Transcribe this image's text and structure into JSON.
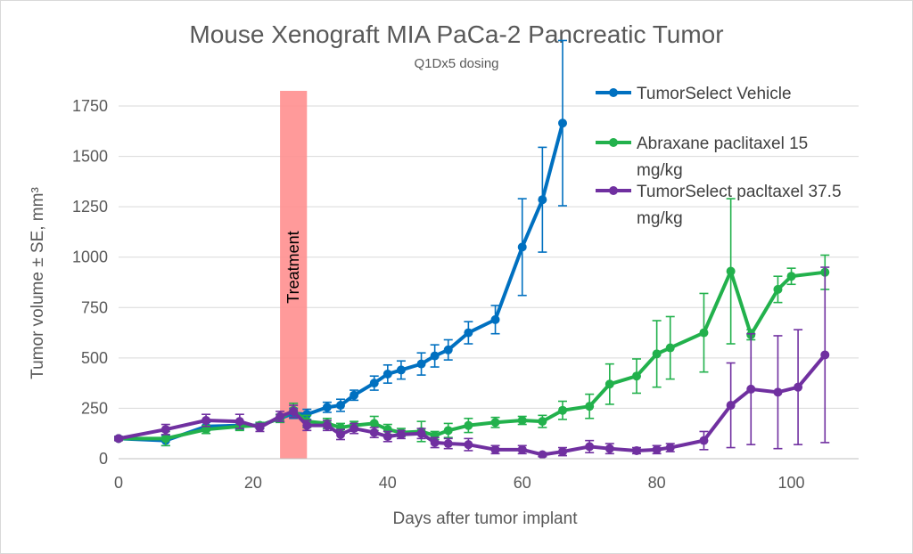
{
  "chart_data": {
    "type": "line",
    "title": "Mouse Xenograft MIA PaCa-2 Pancreatic Tumor",
    "subtitle": "Q1Dx5 dosing",
    "xlabel": "Days after tumor implant",
    "ylabel": "Tumor volume ± SE, mm³",
    "xlim": [
      0,
      110
    ],
    "ylim": [
      0,
      1750
    ],
    "xticks": [
      0,
      20,
      40,
      60,
      80,
      100
    ],
    "yticks": [
      0,
      250,
      500,
      750,
      1000,
      1250,
      1500,
      1750
    ],
    "grid": "horizontal",
    "legend_position": "top-right",
    "annotation": {
      "label": "Treatment",
      "x_start": 24,
      "x_end": 28,
      "color": "#ff8f8f"
    },
    "series": [
      {
        "name": "TumorSelect Vehicle",
        "legend_lines": [
          "TumorSelect Vehicle"
        ],
        "color": "#0070c0",
        "x": [
          0,
          7,
          13,
          18,
          21,
          24,
          26,
          28,
          31,
          33,
          35,
          38,
          40,
          42,
          45,
          47,
          49,
          52,
          56,
          60,
          63,
          66
        ],
        "y": [
          100,
          90,
          160,
          165,
          165,
          200,
          225,
          220,
          255,
          265,
          315,
          375,
          420,
          440,
          470,
          510,
          540,
          625,
          690,
          1050,
          1285,
          1665
        ],
        "err": [
          10,
          25,
          20,
          20,
          15,
          20,
          25,
          25,
          25,
          30,
          25,
          35,
          45,
          45,
          55,
          55,
          50,
          55,
          70,
          240,
          260,
          410
        ]
      },
      {
        "name": "Abraxane paclitaxel 15 mg/kg",
        "legend_lines": [
          "Abraxane paclitaxel 15",
          "mg/kg"
        ],
        "color": "#22b14c",
        "x": [
          0,
          7,
          13,
          18,
          21,
          24,
          26,
          28,
          31,
          33,
          35,
          38,
          40,
          42,
          45,
          47,
          49,
          52,
          56,
          60,
          63,
          66,
          70,
          73,
          77,
          80,
          82,
          87,
          91,
          94,
          98,
          100,
          105
        ],
        "y": [
          100,
          100,
          145,
          160,
          165,
          200,
          240,
          185,
          175,
          155,
          165,
          175,
          145,
          130,
          135,
          115,
          140,
          165,
          180,
          190,
          185,
          240,
          260,
          370,
          410,
          520,
          550,
          625,
          930,
          615,
          840,
          905,
          925
        ],
        "err": [
          10,
          35,
          20,
          20,
          15,
          20,
          35,
          30,
          25,
          20,
          20,
          35,
          25,
          20,
          50,
          20,
          35,
          35,
          25,
          20,
          30,
          45,
          60,
          100,
          85,
          165,
          155,
          195,
          360,
          25,
          65,
          40,
          85
        ]
      },
      {
        "name": "TumorSelect pacltaxel 37.5 mg/kg",
        "legend_lines": [
          "TumorSelect pacltaxel 37.5",
          "mg/kg"
        ],
        "color": "#7030a0",
        "x": [
          0,
          7,
          13,
          18,
          21,
          24,
          26,
          28,
          31,
          33,
          35,
          38,
          40,
          42,
          45,
          47,
          49,
          52,
          56,
          60,
          63,
          66,
          70,
          73,
          77,
          80,
          82,
          87,
          91,
          94,
          98,
          101,
          105
        ],
        "y": [
          100,
          145,
          190,
          185,
          155,
          210,
          235,
          165,
          165,
          120,
          150,
          130,
          110,
          120,
          125,
          80,
          75,
          70,
          45,
          45,
          20,
          35,
          60,
          50,
          40,
          45,
          55,
          90,
          265,
          345,
          330,
          355,
          515
        ],
        "err": [
          10,
          25,
          30,
          35,
          20,
          25,
          30,
          25,
          25,
          25,
          25,
          25,
          25,
          20,
          25,
          25,
          25,
          30,
          20,
          20,
          10,
          20,
          30,
          25,
          15,
          20,
          20,
          45,
          210,
          275,
          280,
          285,
          435
        ]
      }
    ]
  }
}
